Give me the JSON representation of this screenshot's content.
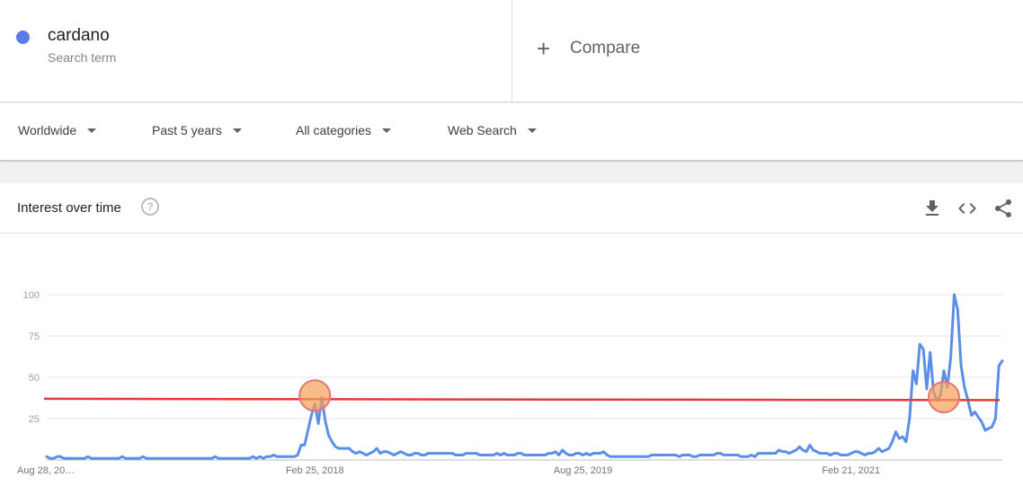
{
  "term": {
    "name": "cardano",
    "subtitle": "Search term",
    "color": "#5b7be8"
  },
  "compare": {
    "label": "Compare",
    "icon": "plus-icon"
  },
  "filters": [
    {
      "label": "Worldwide"
    },
    {
      "label": "Past 5 years"
    },
    {
      "label": "All categories"
    },
    {
      "label": "Web Search"
    }
  ],
  "card": {
    "title": "Interest over time",
    "icons": [
      "help-icon",
      "download-icon",
      "embed-code-icon",
      "share-icon"
    ]
  },
  "chart_data": {
    "type": "line",
    "title": "Interest over time",
    "xlabel": "",
    "ylabel": "",
    "ylim": [
      0,
      100
    ],
    "yticks": [
      25,
      50,
      75,
      100
    ],
    "grid": true,
    "xtick_labels": [
      "Aug 28, 20…",
      "Feb 25, 2018",
      "Aug 25, 2019",
      "Feb 21, 2021"
    ],
    "xtick_index": [
      0,
      78,
      156,
      234
    ],
    "series": [
      {
        "name": "cardano",
        "color": "#5b8ee6",
        "values": [
          2,
          1,
          1,
          2,
          2,
          1,
          1,
          1,
          1,
          1,
          1,
          1,
          2,
          1,
          1,
          1,
          1,
          1,
          1,
          1,
          1,
          1,
          2,
          1,
          1,
          1,
          1,
          1,
          2,
          1,
          1,
          1,
          1,
          1,
          1,
          1,
          1,
          1,
          1,
          1,
          1,
          1,
          1,
          1,
          1,
          1,
          1,
          1,
          1,
          2,
          1,
          1,
          1,
          1,
          1,
          1,
          1,
          1,
          1,
          1,
          2,
          1,
          2,
          1,
          2,
          2,
          3,
          2,
          2,
          2,
          2,
          2,
          2,
          3,
          9,
          9,
          18,
          27,
          34,
          22,
          38,
          24,
          15,
          11,
          8,
          7,
          7,
          7,
          7,
          5,
          4,
          5,
          4,
          3,
          4,
          5,
          7,
          4,
          5,
          5,
          4,
          3,
          4,
          5,
          4,
          3,
          3,
          4,
          4,
          3,
          3,
          4,
          4,
          4,
          4,
          4,
          4,
          4,
          4,
          3,
          3,
          3,
          4,
          4,
          4,
          4,
          3,
          3,
          3,
          3,
          3,
          4,
          3,
          4,
          3,
          3,
          3,
          4,
          4,
          3,
          3,
          3,
          3,
          3,
          3,
          3,
          4,
          4,
          5,
          3,
          6,
          4,
          3,
          3,
          4,
          4,
          3,
          4,
          3,
          4,
          4,
          4,
          5,
          3,
          2,
          2,
          2,
          2,
          2,
          2,
          2,
          2,
          2,
          2,
          2,
          2,
          3,
          3,
          3,
          3,
          3,
          3,
          3,
          3,
          2,
          3,
          3,
          3,
          2,
          2,
          3,
          3,
          3,
          3,
          3,
          4,
          4,
          3,
          3,
          3,
          3,
          3,
          2,
          2,
          2,
          3,
          2,
          4,
          4,
          4,
          4,
          4,
          4,
          6,
          5,
          5,
          4,
          5,
          6,
          8,
          6,
          5,
          9,
          6,
          5,
          4,
          4,
          4,
          3,
          4,
          4,
          3,
          3,
          3,
          4,
          5,
          5,
          4,
          3,
          4,
          4,
          5,
          7,
          5,
          6,
          7,
          11,
          17,
          13,
          14,
          11,
          25,
          54,
          46,
          70,
          67,
          43,
          65,
          41,
          36,
          39,
          54,
          44,
          62,
          100,
          91,
          57,
          44,
          36,
          27,
          29,
          26,
          23,
          18,
          19,
          20,
          25,
          57,
          60
        ]
      }
    ],
    "annotations": [
      {
        "type": "hline",
        "value": 37,
        "color": "#e53935"
      },
      {
        "type": "circle",
        "index": 78,
        "value": 39,
        "color": "#f5a05a"
      },
      {
        "type": "circle",
        "index": 261,
        "value": 38,
        "color": "#f5a05a"
      }
    ]
  }
}
